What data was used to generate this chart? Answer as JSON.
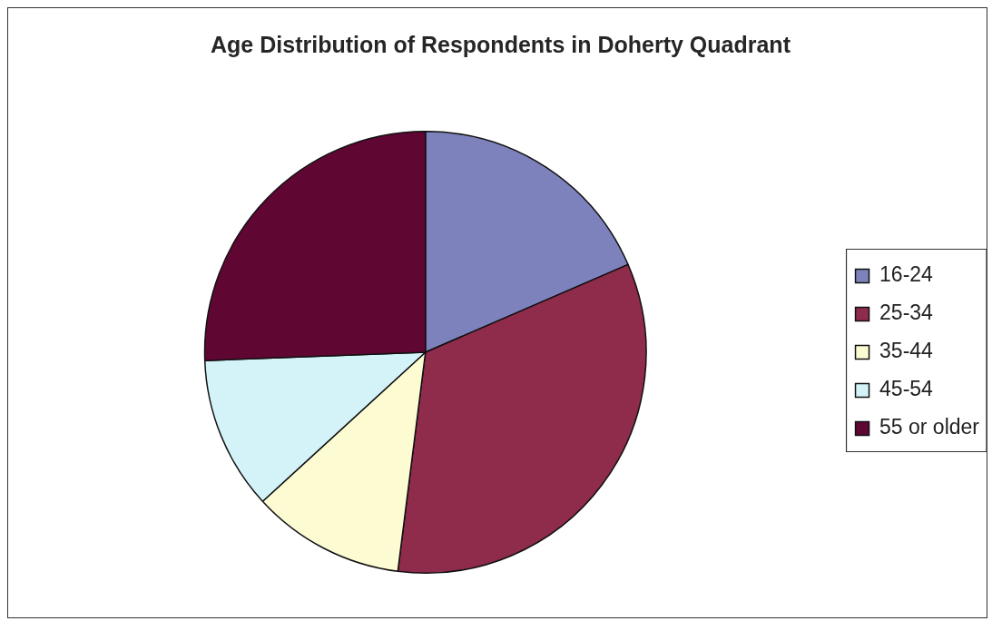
{
  "chart_data": {
    "type": "pie",
    "title": "Age Distribution of Respondents in Doherty Quadrant",
    "categories": [
      "16-24",
      "25-34",
      "35-44",
      "45-54",
      "55 or older"
    ],
    "values": [
      18.5,
      33.5,
      11.2,
      11.2,
      25.6
    ],
    "colors": [
      "#7d82bd",
      "#8f2b4b",
      "#fdfbd2",
      "#d3f3f8",
      "#5f0633"
    ],
    "legend": "right"
  }
}
